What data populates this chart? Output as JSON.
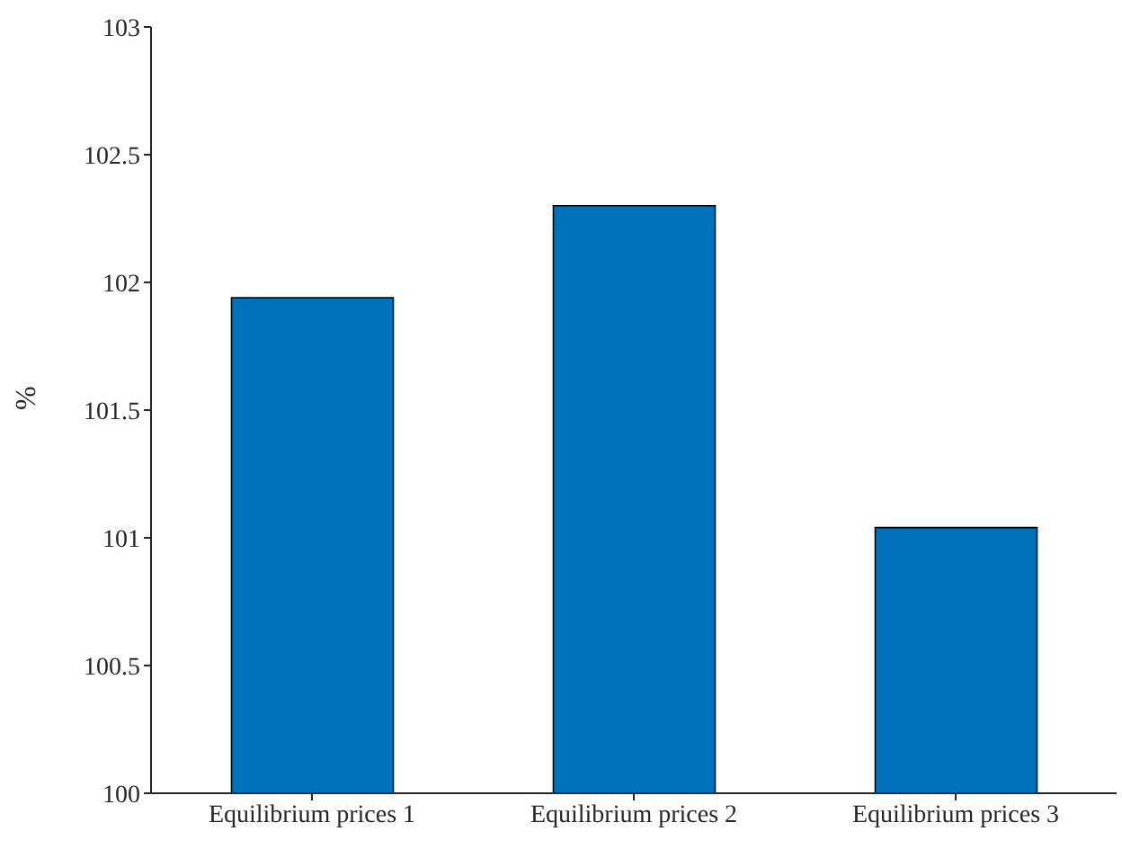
{
  "chart_data": {
    "type": "bar",
    "ylabel": "%",
    "categories": [
      "Equilibrium prices 1",
      "Equilibrium prices 2",
      "Equilibrium prices 3"
    ],
    "values": [
      101.94,
      102.3,
      101.04
    ],
    "color": "#0072bd",
    "ylim": [
      100,
      103
    ],
    "yticks": [
      100,
      100.5,
      101,
      101.5,
      102,
      102.5,
      103
    ],
    "grid": false,
    "legend": false
  }
}
